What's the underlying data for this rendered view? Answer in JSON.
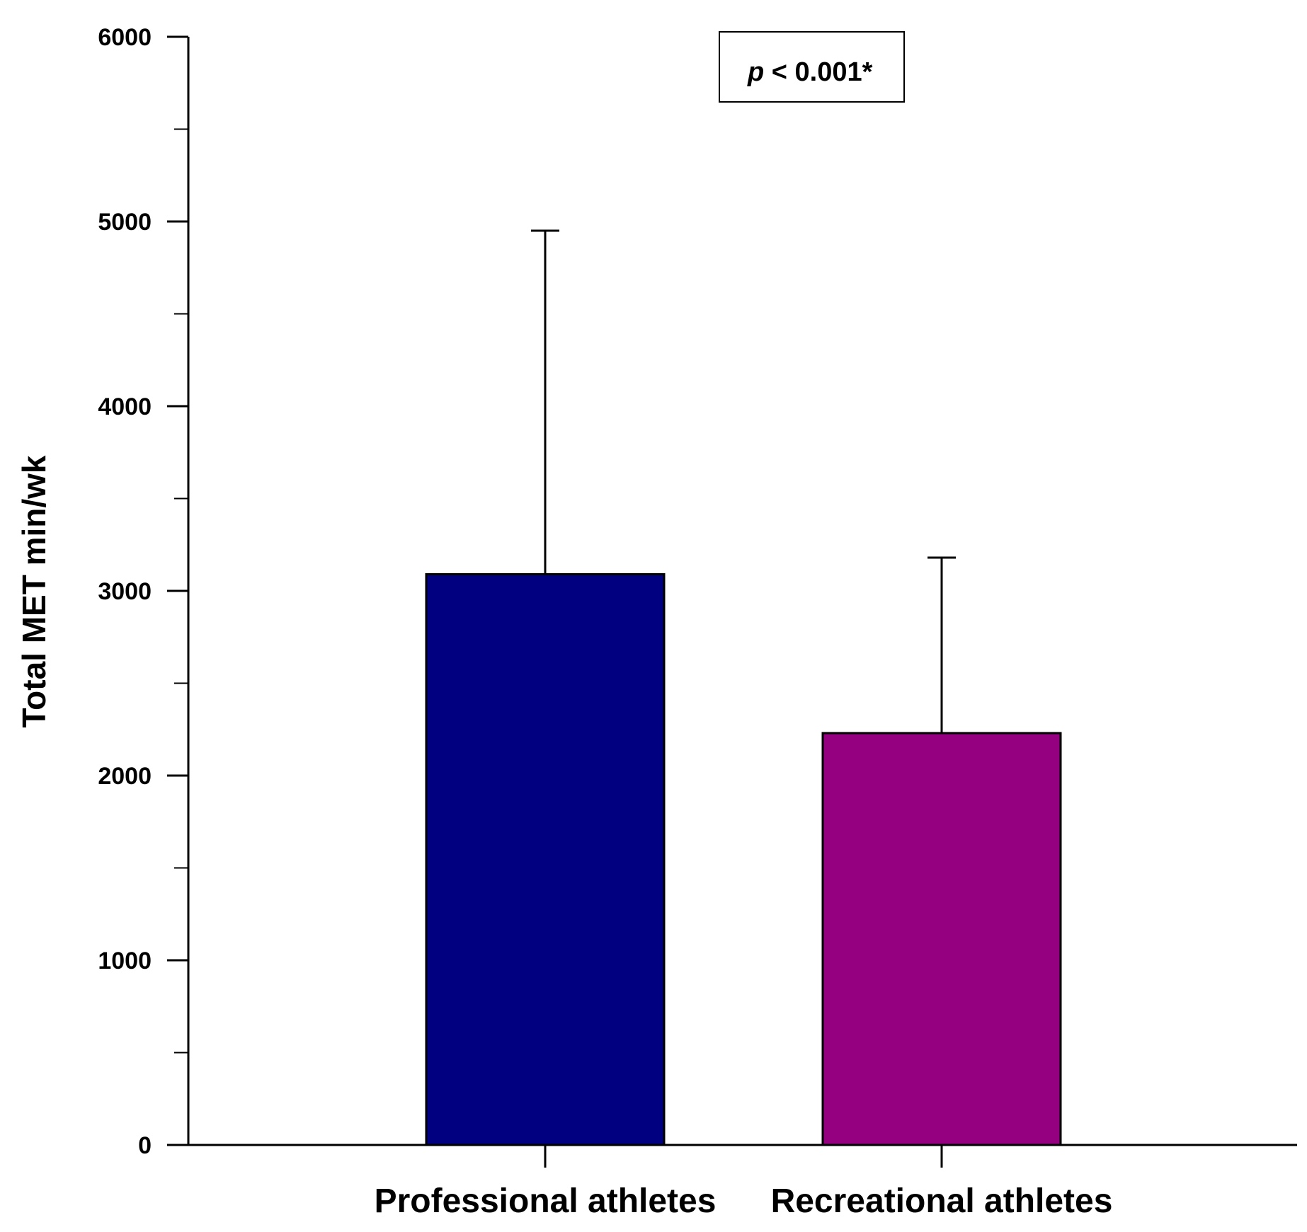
{
  "chart_data": {
    "type": "bar",
    "categories": [
      "Professional athletes",
      "Recreational athletes"
    ],
    "values": [
      3090,
      2230
    ],
    "error_upper": [
      4950,
      3180
    ],
    "colors": [
      "#000080",
      "#940080"
    ],
    "ylabel": "Total MET min/wk",
    "xlabel": "",
    "ylim": [
      0,
      6000
    ],
    "yticks": [
      0,
      1000,
      2000,
      3000,
      4000,
      5000,
      6000
    ],
    "y_minor_step": 500,
    "grid": false,
    "annotation": {
      "italic": "p",
      "text": " < 0.001*",
      "placement": "top-center"
    }
  }
}
